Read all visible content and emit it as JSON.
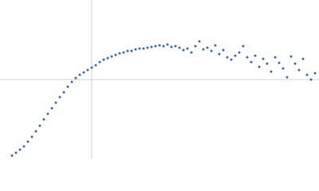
{
  "chart_data": {
    "type": "scatter",
    "color": "#3b68b5",
    "grid": true,
    "xlim": [
      0,
      4
    ],
    "ylim": [
      -1,
      1
    ],
    "xticks": [
      1.15
    ],
    "yticks": [
      0
    ],
    "x": [
      0.15,
      0.2,
      0.25,
      0.3,
      0.35,
      0.4,
      0.45,
      0.5,
      0.55,
      0.6,
      0.65,
      0.7,
      0.75,
      0.8,
      0.85,
      0.9,
      0.95,
      1.0,
      1.05,
      1.1,
      1.15,
      1.2,
      1.25,
      1.3,
      1.35,
      1.4,
      1.45,
      1.5,
      1.55,
      1.6,
      1.65,
      1.7,
      1.75,
      1.8,
      1.85,
      1.9,
      1.95,
      2.0,
      2.05,
      2.1,
      2.15,
      2.2,
      2.25,
      2.3,
      2.35,
      2.4,
      2.45,
      2.5,
      2.55,
      2.6,
      2.65,
      2.7,
      2.75,
      2.8,
      2.85,
      2.9,
      2.95,
      3.0,
      3.05,
      3.1,
      3.15,
      3.2,
      3.25,
      3.3,
      3.35,
      3.4,
      3.45,
      3.5,
      3.55,
      3.6,
      3.65,
      3.7,
      3.75,
      3.8,
      3.85,
      3.9,
      3.95
    ],
    "values": [
      -0.955,
      -0.92,
      -0.88,
      -0.84,
      -0.78,
      -0.72,
      -0.65,
      -0.58,
      -0.5,
      -0.43,
      -0.36,
      -0.29,
      -0.22,
      -0.16,
      -0.09,
      -0.03,
      0.02,
      0.06,
      0.09,
      0.12,
      0.15,
      0.18,
      0.22,
      0.25,
      0.27,
      0.29,
      0.31,
      0.33,
      0.34,
      0.36,
      0.36,
      0.38,
      0.39,
      0.39,
      0.4,
      0.41,
      0.42,
      0.43,
      0.42,
      0.44,
      0.41,
      0.42,
      0.4,
      0.37,
      0.39,
      0.34,
      0.42,
      0.48,
      0.38,
      0.4,
      0.36,
      0.43,
      0.32,
      0.37,
      0.28,
      0.25,
      0.3,
      0.34,
      0.42,
      0.28,
      0.22,
      0.3,
      0.16,
      0.26,
      0.2,
      0.1,
      0.28,
      0.21,
      0.14,
      0.03,
      0.29,
      0.2,
      0.12,
      0.26,
      0.06,
      0,
      0.08
    ]
  }
}
